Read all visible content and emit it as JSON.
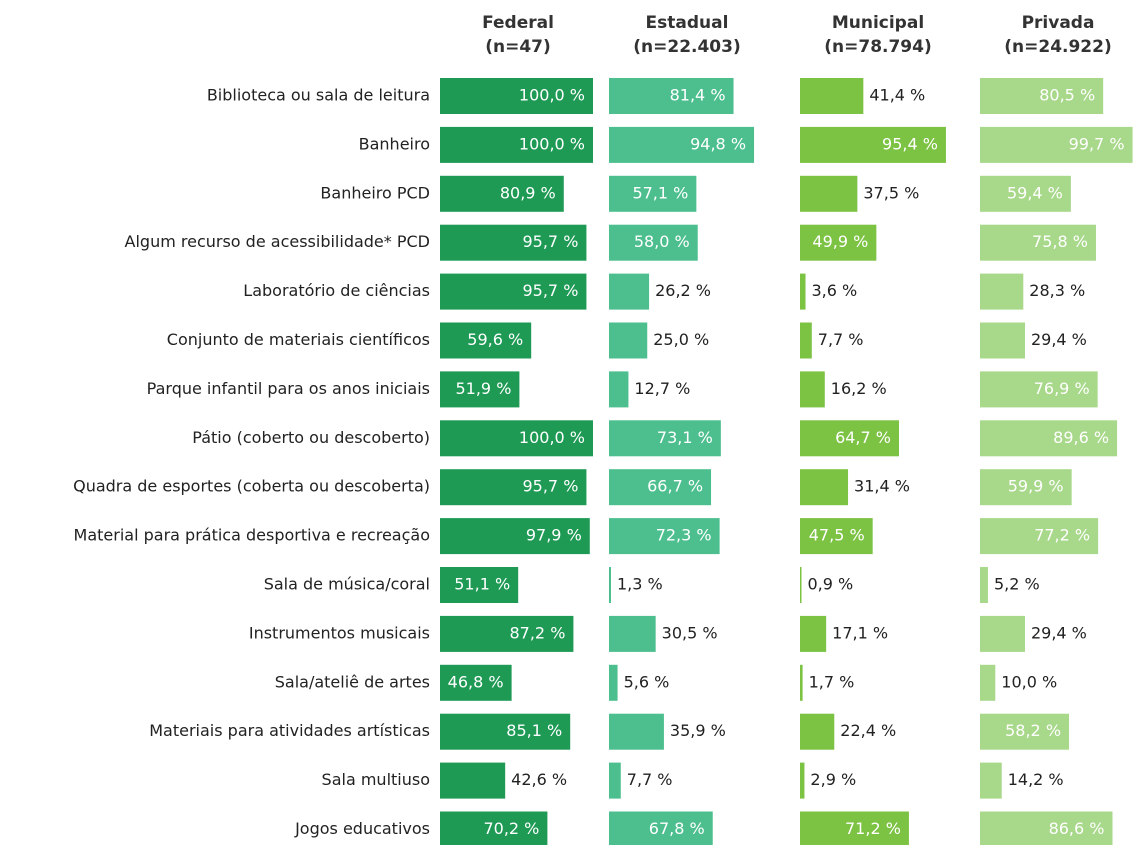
{
  "chart_data": {
    "type": "bar",
    "orientation": "horizontal",
    "layout": "small-multiples",
    "xlim": [
      0,
      100
    ],
    "categories": [
      "Biblioteca ou sala de leitura",
      "Banheiro",
      "Banheiro PCD",
      "Algum recurso de acessibilidade* PCD",
      "Laboratório de ciências",
      "Conjunto de materiais científicos",
      "Parque infantil para os anos iniciais",
      "Pátio (coberto ou descoberto)",
      "Quadra de esportes (coberta ou descoberta)",
      "Material para prática desportiva e recreação",
      "Sala de música/coral",
      "Instrumentos musicais",
      "Sala/ateliê de artes",
      "Materiais para atividades artísticas",
      "Sala multiuso",
      "Jogos educativos"
    ],
    "series": [
      {
        "name": "Federal",
        "sample": "(n=47)",
        "color": "#1e9a55",
        "values": [
          100.0,
          100.0,
          80.9,
          95.7,
          95.7,
          59.6,
          51.9,
          100.0,
          95.7,
          97.9,
          51.1,
          87.2,
          46.8,
          85.1,
          42.6,
          70.2
        ],
        "value_labels": [
          "100,0 %",
          "100,0 %",
          "80,9 %",
          "95,7 %",
          "95,7 %",
          "59,6 %",
          "51,9 %",
          "100,0 %",
          "95,7 %",
          "97,9 %",
          "51,1 %",
          "87,2 %",
          "46,8 %",
          "85,1 %",
          "42,6 %",
          "70,2 %"
        ]
      },
      {
        "name": "Estadual",
        "sample": "(n=22.403)",
        "color": "#4dbf8f",
        "values": [
          81.4,
          94.8,
          57.1,
          58.0,
          26.2,
          25.0,
          12.7,
          73.1,
          66.7,
          72.3,
          1.3,
          30.5,
          5.6,
          35.9,
          7.7,
          67.8
        ],
        "value_labels": [
          "81,4 %",
          "94,8 %",
          "57,1 %",
          "58,0 %",
          "26,2 %",
          "25,0 %",
          "12,7 %",
          "73,1 %",
          "66,7 %",
          "72,3 %",
          "1,3 %",
          "30,5 %",
          "5,6 %",
          "35,9 %",
          "7,7 %",
          "67,8 %"
        ]
      },
      {
        "name": "Municipal",
        "sample": "(n=78.794)",
        "color": "#7cc243",
        "values": [
          41.4,
          95.4,
          37.5,
          49.9,
          3.6,
          7.7,
          16.2,
          64.7,
          31.4,
          47.5,
          0.9,
          17.1,
          1.7,
          22.4,
          2.9,
          71.2
        ],
        "value_labels": [
          "41,4 %",
          "95,4 %",
          "37,5 %",
          "49,9 %",
          "3,6 %",
          "7,7 %",
          "16,2 %",
          "64,7 %",
          "31,4 %",
          "47,5 %",
          "0,9 %",
          "17,1 %",
          "1,7 %",
          "22,4 %",
          "2,9 %",
          "71,2 %"
        ]
      },
      {
        "name": "Privada",
        "sample": "(n=24.922)",
        "color": "#a8d88a",
        "values": [
          80.5,
          99.7,
          59.4,
          75.8,
          28.3,
          29.4,
          76.9,
          89.6,
          59.9,
          77.2,
          5.2,
          29.4,
          10.0,
          58.2,
          14.2,
          86.6
        ],
        "value_labels": [
          "80,5 %",
          "99,7 %",
          "59,4 %",
          "75,8 %",
          "28,3 %",
          "29,4 %",
          "76,9 %",
          "89,6 %",
          "59,9 %",
          "77,2 %",
          "5,2 %",
          "29,4 %",
          "10,0 %",
          "58,2 %",
          "14,2 %",
          "86,6 %"
        ]
      }
    ]
  }
}
